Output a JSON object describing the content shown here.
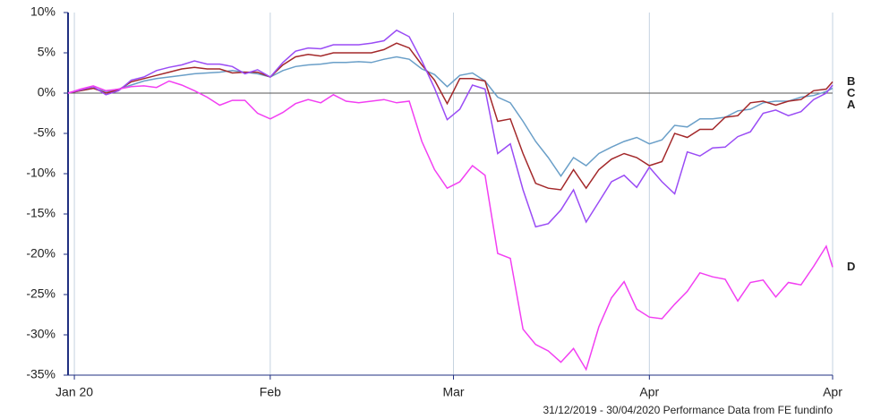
{
  "chart_data": {
    "type": "line",
    "footnote": "31/12/2019 - 30/04/2020 Performance Data from FE fundinfo",
    "x": [
      0,
      2,
      4,
      6,
      8,
      10,
      12,
      14,
      16,
      18,
      20,
      22,
      24,
      26,
      28,
      30,
      32,
      34,
      36,
      38,
      40,
      42,
      44,
      46,
      48,
      50,
      52,
      54,
      56,
      58,
      60,
      62,
      64,
      66,
      68,
      70,
      72,
      74,
      76,
      78,
      80,
      82,
      84,
      86,
      88,
      90,
      92,
      94,
      96,
      98,
      100,
      102,
      104,
      106,
      108,
      110,
      112,
      114,
      116,
      118,
      120,
      121
    ],
    "xlim": [
      0,
      121
    ],
    "xticks": [
      {
        "value": 1,
        "label": "Jan 20"
      },
      {
        "value": 32,
        "label": "Feb"
      },
      {
        "value": 61,
        "label": "Mar"
      },
      {
        "value": 92,
        "label": "Apr"
      },
      {
        "value": 121,
        "label": "Apr"
      }
    ],
    "ylim": [
      -35,
      10
    ],
    "yticks": [
      {
        "value": 10,
        "label": "10%"
      },
      {
        "value": 5,
        "label": "5%"
      },
      {
        "value": 0,
        "label": "0%"
      },
      {
        "value": -5,
        "label": "-5%"
      },
      {
        "value": -10,
        "label": "-10%"
      },
      {
        "value": -15,
        "label": "-15%"
      },
      {
        "value": -20,
        "label": "-20%"
      },
      {
        "value": -25,
        "label": "-25%"
      },
      {
        "value": -30,
        "label": "-30%"
      },
      {
        "value": -35,
        "label": "-35%"
      }
    ],
    "grid": true,
    "series": [
      {
        "name": "A",
        "color": "#6a9fc8",
        "values": [
          0,
          0.3,
          0.6,
          0.2,
          0.5,
          1.0,
          1.5,
          1.8,
          2.0,
          2.2,
          2.4,
          2.5,
          2.6,
          2.8,
          2.6,
          2.4,
          2.0,
          2.8,
          3.3,
          3.5,
          3.6,
          3.8,
          3.8,
          3.9,
          3.8,
          4.2,
          4.5,
          4.2,
          3.0,
          2.3,
          0.8,
          2.2,
          2.5,
          1.5,
          -0.5,
          -1.2,
          -3.5,
          -6,
          -8,
          -10.3,
          -8,
          -9,
          -7.5,
          -6.7,
          -6,
          -5.5,
          -6.3,
          -5.8,
          -4,
          -4.2,
          -3.2,
          -3.2,
          -3.0,
          -2.2,
          -2,
          -1.2,
          -1,
          -1,
          -0.5,
          -0.3,
          0.2,
          0.6
        ]
      },
      {
        "name": "B",
        "color": "#a3282a",
        "values": [
          0,
          0.3,
          0.6,
          0.0,
          0.4,
          1.4,
          1.8,
          2.2,
          2.6,
          3.0,
          3.2,
          3.0,
          3.0,
          2.5,
          2.6,
          2.6,
          2.0,
          3.5,
          4.5,
          4.8,
          4.6,
          5.0,
          5.0,
          5.0,
          5.0,
          5.4,
          6.2,
          5.6,
          3.5,
          1.6,
          -1.3,
          1.8,
          1.8,
          1.5,
          -3.5,
          -3.2,
          -7.5,
          -11.2,
          -11.8,
          -12,
          -9.5,
          -11.8,
          -9.5,
          -8.2,
          -7.5,
          -8,
          -9,
          -8.5,
          -5,
          -5.5,
          -4.5,
          -4.5,
          -3,
          -2.8,
          -1.2,
          -1,
          -1.5,
          -1,
          -0.8,
          0.3,
          0.5,
          1.4
        ]
      },
      {
        "name": "C",
        "color": "#9a4cf5",
        "values": [
          0,
          0.4,
          0.8,
          -0.2,
          0.3,
          1.6,
          2.0,
          2.8,
          3.2,
          3.5,
          4.0,
          3.6,
          3.6,
          3.3,
          2.4,
          2.9,
          2.0,
          3.8,
          5.2,
          5.6,
          5.5,
          6.0,
          6.0,
          6.0,
          6.2,
          6.5,
          7.8,
          7.0,
          4.0,
          0.6,
          -3.3,
          -2,
          1.0,
          0.5,
          -7.5,
          -6.3,
          -12,
          -16.6,
          -16.2,
          -14.5,
          -12,
          -16,
          -13.5,
          -11,
          -10.2,
          -11.7,
          -9.2,
          -11,
          -12.5,
          -7.3,
          -7.8,
          -6.8,
          -6.7,
          -5.4,
          -4.8,
          -2.5,
          -2.1,
          -2.8,
          -2.3,
          -0.8,
          0,
          1.0
        ]
      },
      {
        "name": "D",
        "color": "#f23ff2",
        "values": [
          0,
          0.5,
          0.9,
          0.3,
          0.5,
          0.8,
          0.9,
          0.7,
          1.5,
          1.0,
          0.3,
          -0.5,
          -1.5,
          -0.9,
          -0.9,
          -2.5,
          -3.2,
          -2.4,
          -1.3,
          -0.8,
          -1.2,
          -0.2,
          -1,
          -1.2,
          -1,
          -0.8,
          -1.2,
          -1,
          -6,
          -9.5,
          -11.8,
          -11,
          -9,
          -10.2,
          -19.9,
          -20.5,
          -29.3,
          -31.2,
          -32,
          -33.4,
          -31.7,
          -34.3,
          -29,
          -25.4,
          -23.4,
          -26.8,
          -27.8,
          -28,
          -26.2,
          -24.6,
          -22.3,
          -22.8,
          -23.1,
          -25.8,
          -23.5,
          -23.2,
          -25.3,
          -23.5,
          -23.8,
          -21.5,
          -19,
          -21.6
        ]
      }
    ]
  }
}
